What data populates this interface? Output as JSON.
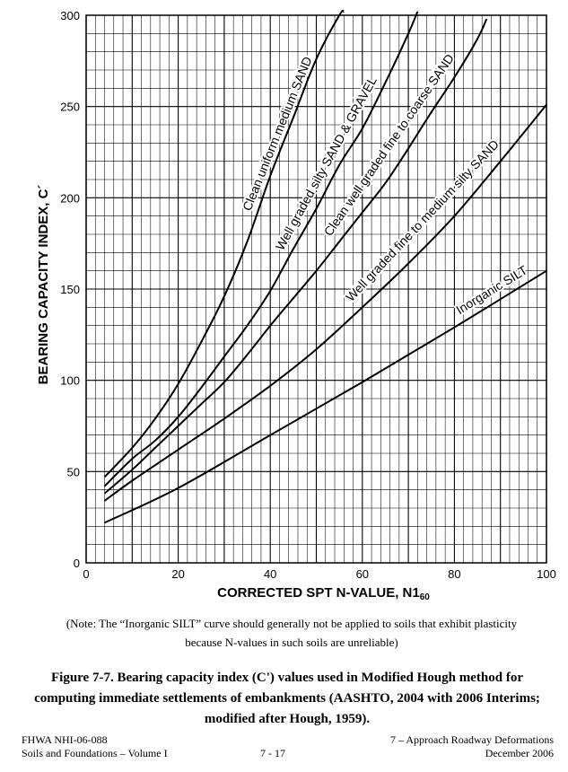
{
  "chart_data": {
    "type": "line",
    "xlabel": "CORRECTED SPT N-VALUE, N1",
    "xlabel_sub": "60",
    "ylabel": "BEARING CAPACITY INDEX, C´",
    "xlim": [
      0,
      100
    ],
    "ylim": [
      0,
      300
    ],
    "x_ticks": [
      0,
      20,
      40,
      60,
      80,
      100
    ],
    "y_ticks": [
      0,
      50,
      100,
      150,
      200,
      250,
      300
    ],
    "grid": true,
    "series": [
      {
        "name": "Clean uniform medium SAND",
        "x": [
          4,
          10,
          15,
          20,
          25,
          30,
          35,
          40,
          45,
          50,
          55,
          56
        ],
        "y": [
          47,
          63,
          79,
          98,
          121,
          146,
          176,
          212,
          244,
          276,
          300,
          302
        ]
      },
      {
        "name": "Well graded silty SAND & GRAVEL",
        "x": [
          4,
          10,
          15,
          20,
          25,
          30,
          35,
          40,
          45,
          50,
          55,
          60,
          65,
          70,
          72
        ],
        "y": [
          42,
          57,
          67,
          80,
          96,
          113,
          130,
          149,
          172,
          194,
          218,
          238,
          263,
          290,
          302
        ]
      },
      {
        "name": "Clean well graded fine to coarse SAND",
        "x": [
          4,
          10,
          15,
          20,
          25,
          30,
          35,
          40,
          45,
          50,
          55,
          60,
          65,
          70,
          75,
          80,
          85,
          87
        ],
        "y": [
          38,
          51,
          63,
          75,
          87,
          99,
          114,
          130,
          145,
          160,
          176,
          192,
          208,
          227,
          247,
          266,
          287,
          298
        ]
      },
      {
        "name": "Well graded fine to medium silty SAND",
        "x": [
          4,
          10,
          20,
          30,
          40,
          50,
          60,
          70,
          80,
          90,
          100
        ],
        "y": [
          34,
          45,
          62,
          79,
          97,
          117,
          140,
          164,
          190,
          220,
          251
        ]
      },
      {
        "name": "Inorganic SILT",
        "x": [
          4,
          20,
          40,
          60,
          80,
          100
        ],
        "y": [
          22,
          41,
          70,
          99,
          129,
          160
        ]
      }
    ]
  },
  "note": {
    "line1": "(Note: The “Inorganic SILT” curve should generally not be applied to soils that exhibit plasticity",
    "line2": "because N-values in such soils are unreliable)"
  },
  "caption": {
    "line1": "Figure 7-7. Bearing capacity index (C') values used in Modified Hough method for",
    "line2": "computing immediate settlements of embankments (AASHTO, 2004 with 2006 Interims;",
    "line3": "modified after Hough, 1959)."
  },
  "footer": {
    "left1": "FHWA NHI-06-088",
    "left2": "Soils and Foundations – Volume I",
    "center": "7 - 17",
    "right1": "7 – Approach Roadway Deformations",
    "right2": "December 2006"
  }
}
